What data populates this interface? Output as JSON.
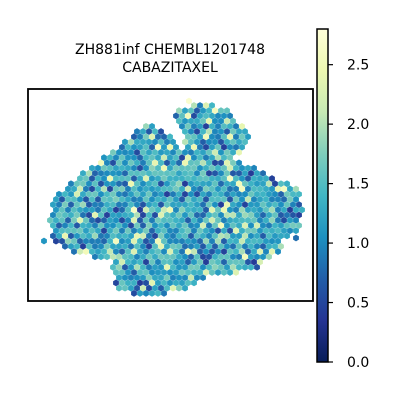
{
  "chart_data": {
    "type": "scatter",
    "marker": "hexagon",
    "title_line1": "ZH881inf CHEMBL1201748",
    "title_line2": "CABAZITAXEL",
    "xlabel": "",
    "ylabel": "",
    "frame": true,
    "grid": false,
    "colormap": "YlGnBu_r",
    "colorbar": {
      "min": 0.0,
      "max": 2.8,
      "ticks": [
        0.0,
        0.5,
        1.0,
        1.5,
        2.0,
        2.5
      ],
      "tick_labels": [
        "0.0",
        "0.5",
        "1.0",
        "1.5",
        "2.0",
        "2.5"
      ],
      "placement": "right"
    },
    "colors": {
      "low": "#081d58",
      "mid": "#1d91c0",
      "high": "#ffffd9"
    },
    "value_distribution": {
      "typical_min": 0.4,
      "typical_max": 2.6,
      "dominant_range": [
        0.9,
        1.4
      ]
    },
    "spots": {
      "spacing": 6,
      "count_note": "approx. 1500 spots"
    },
    "tissue_shape": {
      "main_body": [
        [
          -6.2,
          1.2
        ],
        [
          -5.2,
          2.2
        ],
        [
          -4.0,
          3.2
        ],
        [
          -2.5,
          4.6
        ],
        [
          -1.3,
          5.6
        ],
        [
          -0.2,
          5.1
        ],
        [
          0.6,
          4.0
        ],
        [
          2.0,
          3.8
        ],
        [
          3.6,
          3.4
        ],
        [
          5.0,
          2.6
        ],
        [
          6.4,
          1.8
        ],
        [
          7.4,
          1.2
        ],
        [
          7.6,
          -0.2
        ],
        [
          7.4,
          -1.4
        ],
        [
          6.6,
          -2.0
        ],
        [
          6.1,
          -3.1
        ],
        [
          5.0,
          -4.0
        ],
        [
          3.8,
          -4.4
        ],
        [
          2.2,
          -4.6
        ],
        [
          0.7,
          -5.6
        ],
        [
          -1.5,
          -5.8
        ],
        [
          -3.0,
          -5.6
        ],
        [
          -3.2,
          -4.6
        ],
        [
          -3.4,
          -3.6
        ],
        [
          -4.8,
          -3.2
        ],
        [
          -5.8,
          -2.8
        ],
        [
          -6.6,
          -2.2
        ],
        [
          -7.0,
          -1.0
        ],
        [
          -6.8,
          0.2
        ]
      ],
      "top_lobe": [
        [
          0.2,
          6.6
        ],
        [
          1.6,
          7.0
        ],
        [
          3.0,
          6.8
        ],
        [
          3.9,
          5.8
        ],
        [
          4.6,
          4.9
        ],
        [
          4.2,
          3.6
        ],
        [
          2.5,
          3.4
        ],
        [
          1.0,
          3.9
        ],
        [
          0.6,
          5.2
        ]
      ]
    }
  }
}
